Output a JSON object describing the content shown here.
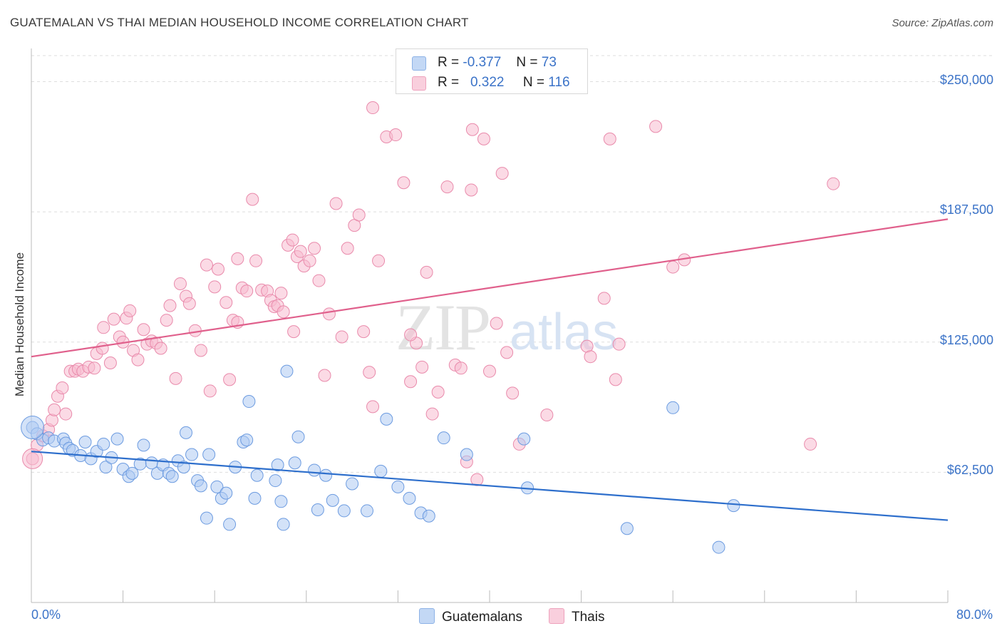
{
  "header": {
    "title": "GUATEMALAN VS THAI MEDIAN HOUSEHOLD INCOME CORRELATION CHART",
    "source": "Source: ZipAtlas.com"
  },
  "legend_top": {
    "rows": [
      {
        "r_label": "R =",
        "r_value": "-0.377",
        "n_label": "N =",
        "n_value": "73"
      },
      {
        "r_label": "R =",
        "r_value": "0.322",
        "n_label": "N =",
        "n_value": "116"
      }
    ]
  },
  "legend_bottom": {
    "guatemalans": "Guatemalans",
    "thais": "Thais"
  },
  "colors": {
    "blue_fill": "#aecbf2",
    "blue_stroke": "#6c9be0",
    "blue_line": "#2e6fcc",
    "pink_fill": "#f7bcd0",
    "pink_stroke": "#e98aab",
    "pink_line": "#e0608c",
    "tick_text": "#3b73c8"
  },
  "chart_data": {
    "type": "scatter",
    "title": "GUATEMALAN VS THAI MEDIAN HOUSEHOLD INCOME CORRELATION CHART",
    "xlabel": "",
    "ylabel": "Median Household Income",
    "xlim": [
      0,
      80
    ],
    "ylim": [
      0,
      262500
    ],
    "x_tick_labels": [
      "0.0%",
      "80.0%"
    ],
    "y_tick_labels": [
      "$62,500",
      "$125,000",
      "$187,500",
      "$250,000"
    ],
    "y_ticks": [
      62500,
      125000,
      187500,
      250000
    ],
    "grid": true,
    "legend_position": "top-center",
    "series": [
      {
        "name": "Guatemalans",
        "r": -0.377,
        "n": 73,
        "trend": {
          "x": [
            0,
            80
          ],
          "y": [
            72500,
            39500
          ]
        },
        "points": [
          [
            0.1,
            84000
          ],
          [
            0.5,
            81000
          ],
          [
            1.0,
            78000
          ],
          [
            1.5,
            79000
          ],
          [
            2.0,
            77500
          ],
          [
            2.8,
            78500
          ],
          [
            3.0,
            76500
          ],
          [
            3.3,
            74000
          ],
          [
            3.6,
            73000
          ],
          [
            4.3,
            70500
          ],
          [
            4.7,
            77000
          ],
          [
            5.2,
            69000
          ],
          [
            5.7,
            72500
          ],
          [
            6.3,
            76000
          ],
          [
            6.5,
            65000
          ],
          [
            7.0,
            69500
          ],
          [
            7.5,
            78500
          ],
          [
            8.0,
            64000
          ],
          [
            8.5,
            60500
          ],
          [
            8.8,
            62000
          ],
          [
            9.5,
            66500
          ],
          [
            9.8,
            75500
          ],
          [
            10.5,
            67000
          ],
          [
            11.0,
            62000
          ],
          [
            11.5,
            66000
          ],
          [
            12.0,
            62000
          ],
          [
            12.3,
            60500
          ],
          [
            12.8,
            68000
          ],
          [
            13.3,
            65000
          ],
          [
            13.5,
            81500
          ],
          [
            14.0,
            71000
          ],
          [
            14.5,
            58500
          ],
          [
            14.8,
            56000
          ],
          [
            15.3,
            40500
          ],
          [
            15.5,
            71000
          ],
          [
            16.2,
            55500
          ],
          [
            16.6,
            50000
          ],
          [
            17.0,
            52500
          ],
          [
            17.3,
            37500
          ],
          [
            17.8,
            65000
          ],
          [
            18.5,
            77000
          ],
          [
            18.8,
            78000
          ],
          [
            19.0,
            96500
          ],
          [
            19.5,
            50000
          ],
          [
            19.7,
            61000
          ],
          [
            21.3,
            58500
          ],
          [
            21.5,
            66000
          ],
          [
            21.8,
            48500
          ],
          [
            22.0,
            37500
          ],
          [
            22.3,
            111000
          ],
          [
            23.0,
            67000
          ],
          [
            23.3,
            79500
          ],
          [
            24.7,
            63500
          ],
          [
            25.0,
            44500
          ],
          [
            25.7,
            61000
          ],
          [
            26.3,
            49000
          ],
          [
            27.3,
            44000
          ],
          [
            28.0,
            57000
          ],
          [
            29.3,
            44000
          ],
          [
            30.5,
            63000
          ],
          [
            31.0,
            88000
          ],
          [
            32.0,
            55500
          ],
          [
            33.0,
            50000
          ],
          [
            34.0,
            43000
          ],
          [
            34.7,
            41500
          ],
          [
            36.0,
            79000
          ],
          [
            38.0,
            71000
          ],
          [
            43.0,
            78500
          ],
          [
            43.3,
            55000
          ],
          [
            52.0,
            35500
          ],
          [
            56.0,
            93500
          ],
          [
            60.0,
            26500
          ],
          [
            61.3,
            46500
          ]
        ]
      },
      {
        "name": "Thais",
        "r": 0.322,
        "n": 116,
        "trend": {
          "x": [
            0,
            80
          ],
          "y": [
            118000,
            184000
          ]
        },
        "points": [
          [
            0.1,
            69000
          ],
          [
            0.5,
            75500
          ],
          [
            1.0,
            80000
          ],
          [
            1.5,
            83000
          ],
          [
            1.8,
            87500
          ],
          [
            2.0,
            92500
          ],
          [
            2.3,
            99000
          ],
          [
            2.7,
            103000
          ],
          [
            3.0,
            90500
          ],
          [
            3.4,
            111000
          ],
          [
            3.8,
            111000
          ],
          [
            4.1,
            112000
          ],
          [
            4.5,
            111000
          ],
          [
            5.0,
            113000
          ],
          [
            5.5,
            112500
          ],
          [
            5.7,
            119500
          ],
          [
            6.2,
            122000
          ],
          [
            6.3,
            132000
          ],
          [
            6.9,
            115000
          ],
          [
            7.2,
            136000
          ],
          [
            7.7,
            127500
          ],
          [
            8.0,
            125000
          ],
          [
            8.3,
            136500
          ],
          [
            8.6,
            140000
          ],
          [
            8.9,
            121000
          ],
          [
            9.3,
            116500
          ],
          [
            9.8,
            131000
          ],
          [
            10.1,
            124000
          ],
          [
            10.5,
            125500
          ],
          [
            10.9,
            124500
          ],
          [
            11.3,
            122000
          ],
          [
            11.8,
            135500
          ],
          [
            12.1,
            142500
          ],
          [
            12.6,
            107500
          ],
          [
            13.0,
            153000
          ],
          [
            13.5,
            147000
          ],
          [
            13.8,
            143500
          ],
          [
            14.3,
            130500
          ],
          [
            14.8,
            121000
          ],
          [
            15.3,
            162000
          ],
          [
            15.6,
            101500
          ],
          [
            16.0,
            151500
          ],
          [
            16.3,
            160000
          ],
          [
            17.0,
            144000
          ],
          [
            17.3,
            107000
          ],
          [
            17.6,
            135500
          ],
          [
            18.0,
            165000
          ],
          [
            18.4,
            151000
          ],
          [
            18.8,
            149500
          ],
          [
            19.3,
            193500
          ],
          [
            19.6,
            164000
          ],
          [
            20.1,
            150000
          ],
          [
            20.6,
            149500
          ],
          [
            20.9,
            145000
          ],
          [
            21.2,
            142000
          ],
          [
            21.5,
            142500
          ],
          [
            21.8,
            148500
          ],
          [
            22.0,
            139500
          ],
          [
            22.4,
            171500
          ],
          [
            22.8,
            174000
          ],
          [
            23.2,
            166000
          ],
          [
            23.5,
            168500
          ],
          [
            23.8,
            161500
          ],
          [
            24.3,
            164000
          ],
          [
            24.7,
            170000
          ],
          [
            25.1,
            154500
          ],
          [
            25.6,
            109000
          ],
          [
            26.0,
            138500
          ],
          [
            26.6,
            191500
          ],
          [
            27.1,
            127500
          ],
          [
            27.6,
            170000
          ],
          [
            28.2,
            181000
          ],
          [
            28.6,
            186000
          ],
          [
            29.0,
            130000
          ],
          [
            29.5,
            110500
          ],
          [
            29.8,
            94000
          ],
          [
            30.3,
            164000
          ],
          [
            31.0,
            223500
          ],
          [
            31.8,
            224500
          ],
          [
            32.5,
            201500
          ],
          [
            33.1,
            106000
          ],
          [
            33.6,
            124500
          ],
          [
            34.1,
            113000
          ],
          [
            34.5,
            158500
          ],
          [
            35.0,
            90500
          ],
          [
            35.5,
            101000
          ],
          [
            36.3,
            199500
          ],
          [
            37.0,
            114000
          ],
          [
            37.5,
            112500
          ],
          [
            38.0,
            67500
          ],
          [
            38.4,
            198000
          ],
          [
            38.9,
            59000
          ],
          [
            39.5,
            222500
          ],
          [
            40.0,
            111000
          ],
          [
            40.6,
            134000
          ],
          [
            41.1,
            206000
          ],
          [
            41.5,
            120000
          ],
          [
            42.0,
            100500
          ],
          [
            42.6,
            76000
          ],
          [
            45.0,
            90000
          ],
          [
            48.5,
            123000
          ],
          [
            48.8,
            118000
          ],
          [
            50.0,
            146000
          ],
          [
            50.5,
            222500
          ],
          [
            51.0,
            107000
          ],
          [
            51.3,
            124000
          ],
          [
            54.5,
            228500
          ],
          [
            56.0,
            161000
          ],
          [
            57.0,
            164500
          ],
          [
            68.0,
            76000
          ],
          [
            70.0,
            201000
          ],
          [
            38.5,
            227000
          ],
          [
            29.8,
            237500
          ],
          [
            33.1,
            128500
          ],
          [
            18.0,
            134500
          ],
          [
            22.9,
            130000
          ]
        ]
      }
    ]
  }
}
